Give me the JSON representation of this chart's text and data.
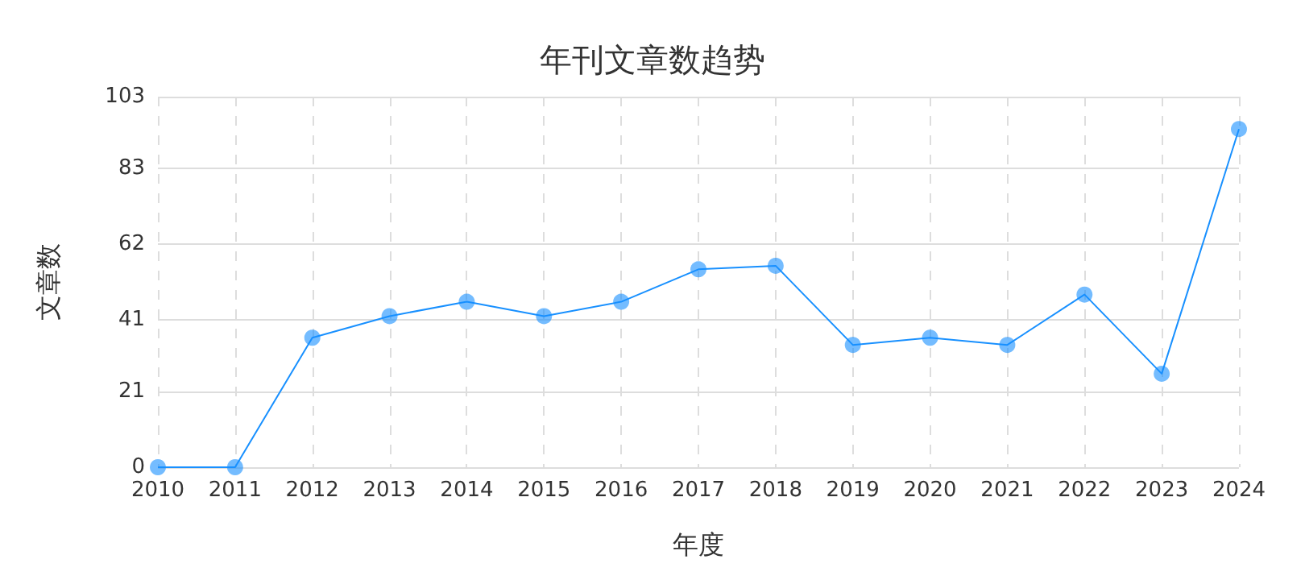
{
  "chart_data": {
    "type": "line",
    "title": "年刊文章数趋势",
    "xlabel": "年度",
    "ylabel": "文章数",
    "categories": [
      "2010",
      "2011",
      "2012",
      "2013",
      "2014",
      "2015",
      "2016",
      "2017",
      "2018",
      "2019",
      "2020",
      "2021",
      "2022",
      "2023",
      "2024"
    ],
    "series": [
      {
        "color": "#1890ff",
        "values": [
          0,
          0,
          36,
          42,
          46,
          42,
          46,
          55,
          56,
          34,
          36,
          34,
          48,
          26,
          94
        ]
      }
    ],
    "ylim": [
      0,
      103
    ],
    "yticks": [
      0,
      21,
      41,
      62,
      83,
      103
    ],
    "grid": true,
    "marker": "circle",
    "line_style": "solid"
  }
}
